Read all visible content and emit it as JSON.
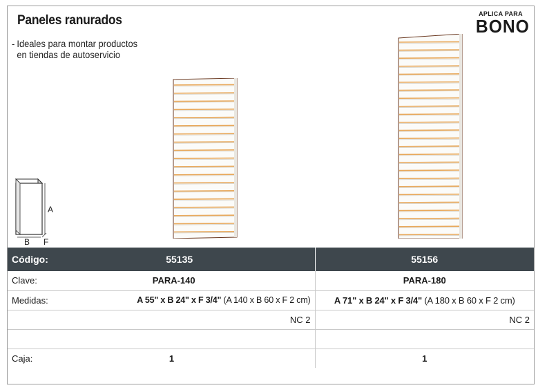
{
  "header": {
    "title": "Paneles ranurados",
    "description_line1": "Ideales para montar productos",
    "description_line2": "en tiendas de autoservicio",
    "description_bullet": "-"
  },
  "badge": {
    "small": "APLICA PARA",
    "big": "BONO"
  },
  "dims_icon": {
    "label_a": "A",
    "label_b": "B",
    "label_f": "F"
  },
  "colors": {
    "header_bg": "#3e474d",
    "slot_color": "#e8a85a",
    "panel_edge": "#5a2a1a"
  },
  "table": {
    "header": {
      "label": "Código:",
      "col1": "55135",
      "col2": "55156"
    },
    "clave": {
      "label": "Clave:",
      "col1": "PARA-140",
      "col2": "PARA-180"
    },
    "medidas": {
      "label": "Medidas:",
      "col1_bold": "A 55\" x B 24\" x F 3/4\"",
      "col1_normal": " (A 140 x B 60 x F 2 cm)",
      "col2_bold": "A 71\" x B 24\" x F 3/4\"",
      "col2_normal": " (A 180 x B 60 x F 2 cm)"
    },
    "nc": {
      "col1": "NC 2",
      "col2": "NC 2"
    },
    "caja": {
      "label": "Caja:",
      "col1": "1",
      "col2": "1"
    }
  }
}
